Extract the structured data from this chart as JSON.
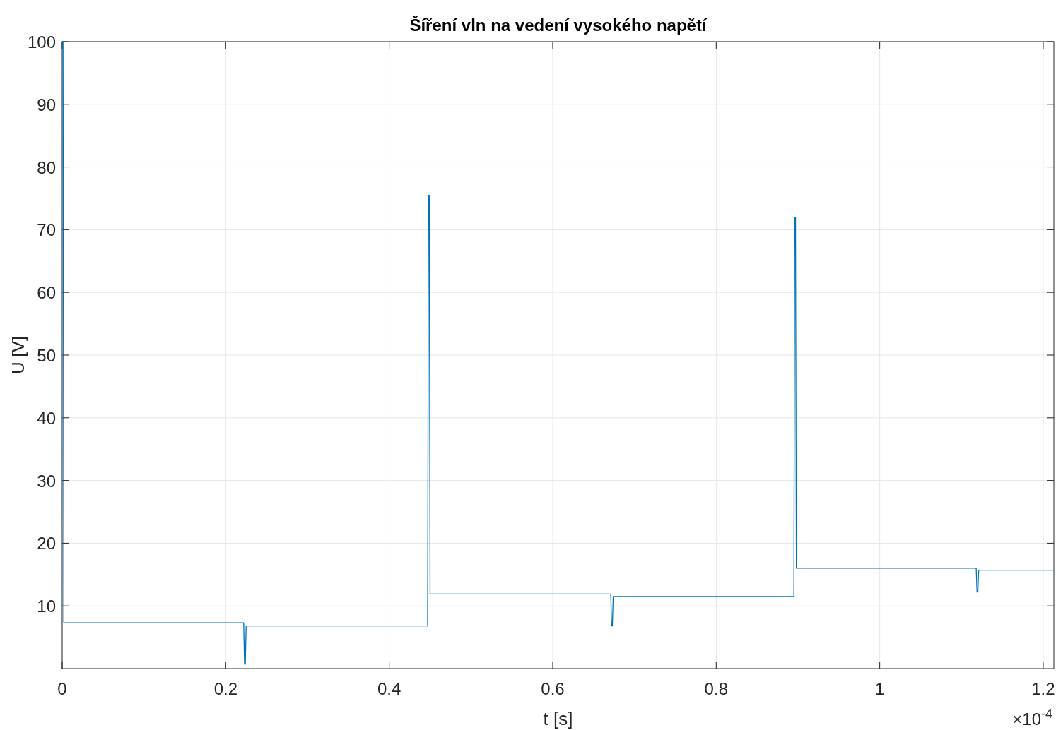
{
  "chart_data": {
    "type": "line",
    "title": "Šíření vln na vedení vysokého napětí",
    "xlabel": "t [s]",
    "ylabel": "U [V]",
    "annotations": [
      "×10$^{-4}$"
    ],
    "xlim": [
      0,
      1.213
    ],
    "xticks": [
      0,
      0.2,
      0.4,
      0.6,
      0.8,
      1,
      1.2
    ],
    "ylim": [
      0,
      100
    ],
    "yticks": [
      10,
      20,
      30,
      40,
      50,
      60,
      70,
      80,
      90,
      100
    ],
    "grid": true,
    "series": [
      {
        "color": "#0072bd",
        "x": [
          0,
          0.001,
          0.002,
          0.222,
          0.223,
          0.224,
          0.225,
          0.226,
          0.447,
          0.448,
          0.449,
          0.45,
          0.451,
          0.671,
          0.672,
          0.673,
          0.674,
          0.675,
          0.895,
          0.896,
          0.897,
          0.898,
          0.899,
          1.118,
          1.119,
          1.12,
          1.121,
          1.122,
          1.213
        ],
        "values": [
          100,
          100,
          7.3,
          7.3,
          0.7,
          0.7,
          6.8,
          6.8,
          6.8,
          75.5,
          75.5,
          11.9,
          11.9,
          11.9,
          6.8,
          6.8,
          11.5,
          11.5,
          11.5,
          72,
          72,
          16,
          16,
          16,
          12.2,
          12.2,
          15.7,
          15.7,
          15.7
        ]
      }
    ]
  }
}
